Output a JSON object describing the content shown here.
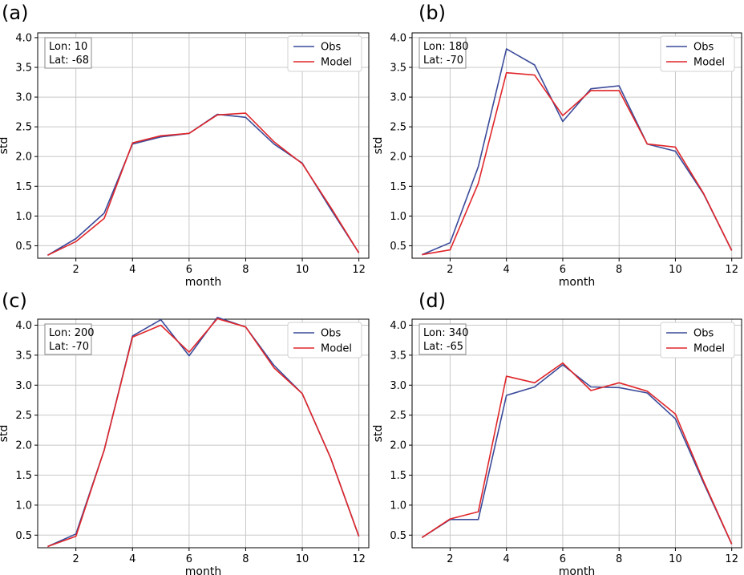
{
  "chart_data": [
    {
      "panel_label": "(a)",
      "type": "line",
      "xlabel": "month",
      "ylabel": "std",
      "xticks": [
        2,
        4,
        6,
        8,
        10,
        12
      ],
      "yticks": [
        "0.5",
        "1.0",
        "1.5",
        "2.0",
        "2.5",
        "3.0",
        "3.5",
        "4.0"
      ],
      "xlim": [
        0.65,
        12.35
      ],
      "ylim": [
        0.29,
        4.08
      ],
      "grid": true,
      "legend_position": "top-right",
      "annotation": [
        "Lon: 10",
        "Lat: -68"
      ],
      "x": [
        1,
        2,
        3,
        4,
        5,
        6,
        7,
        8,
        9,
        10,
        11,
        12
      ],
      "series": [
        {
          "name": "Obs",
          "color": "#3a4a9a",
          "values": [
            0.34,
            0.62,
            1.05,
            2.21,
            2.33,
            2.39,
            2.71,
            2.66,
            2.21,
            1.89,
            1.12,
            0.38
          ]
        },
        {
          "name": "Model",
          "color": "#e0262a",
          "values": [
            0.34,
            0.57,
            0.96,
            2.23,
            2.35,
            2.39,
            2.7,
            2.73,
            2.25,
            1.88,
            1.15,
            0.38
          ]
        }
      ]
    },
    {
      "panel_label": "(b)",
      "type": "line",
      "xlabel": "month",
      "ylabel": "std",
      "xticks": [
        2,
        4,
        6,
        8,
        10,
        12
      ],
      "yticks": [
        "0.5",
        "1.0",
        "1.5",
        "2.0",
        "2.5",
        "3.0",
        "3.5",
        "4.0"
      ],
      "xlim": [
        0.65,
        12.35
      ],
      "ylim": [
        0.29,
        4.08
      ],
      "grid": true,
      "legend_position": "top-right",
      "annotation": [
        "Lon: 180",
        "Lat: -70"
      ],
      "x": [
        1,
        2,
        3,
        4,
        5,
        6,
        7,
        8,
        9,
        10,
        11,
        12
      ],
      "series": [
        {
          "name": "Obs",
          "color": "#3a4a9a",
          "values": [
            0.35,
            0.55,
            1.83,
            3.81,
            3.54,
            2.59,
            3.14,
            3.19,
            2.21,
            2.09,
            1.37,
            0.42
          ]
        },
        {
          "name": "Model",
          "color": "#e0262a",
          "values": [
            0.35,
            0.43,
            1.55,
            3.41,
            3.37,
            2.69,
            3.11,
            3.11,
            2.21,
            2.16,
            1.38,
            0.42
          ]
        }
      ]
    },
    {
      "panel_label": "(c)",
      "type": "line",
      "xlabel": "month",
      "ylabel": "std",
      "xticks": [
        2,
        4,
        6,
        8,
        10,
        12
      ],
      "yticks": [
        "0.5",
        "1.0",
        "1.5",
        "2.0",
        "2.5",
        "3.0",
        "3.5",
        "4.0"
      ],
      "xlim": [
        0.65,
        12.35
      ],
      "ylim": [
        0.29,
        4.1
      ],
      "grid": true,
      "legend_position": "top-right",
      "annotation": [
        "Lon: 200",
        "Lat: -70"
      ],
      "x": [
        1,
        2,
        3,
        4,
        5,
        6,
        7,
        8,
        9,
        10,
        11,
        12
      ],
      "series": [
        {
          "name": "Obs",
          "color": "#3a4a9a",
          "values": [
            0.31,
            0.52,
            1.92,
            3.82,
            4.09,
            3.49,
            4.13,
            3.97,
            3.33,
            2.86,
            1.79,
            0.48
          ]
        },
        {
          "name": "Model",
          "color": "#e0262a",
          "values": [
            0.31,
            0.48,
            1.92,
            3.8,
            4.0,
            3.55,
            4.11,
            3.97,
            3.29,
            2.86,
            1.79,
            0.48
          ]
        }
      ]
    },
    {
      "panel_label": "(d)",
      "type": "line",
      "xlabel": "month",
      "ylabel": "std",
      "xticks": [
        2,
        4,
        6,
        8,
        10,
        12
      ],
      "yticks": [
        "0.5",
        "1.0",
        "1.5",
        "2.0",
        "2.5",
        "3.0",
        "3.5",
        "4.0"
      ],
      "xlim": [
        0.65,
        12.35
      ],
      "ylim": [
        0.29,
        4.1
      ],
      "grid": true,
      "legend_position": "top-right",
      "annotation": [
        "Lon: 340",
        "Lat: -65"
      ],
      "x": [
        1,
        2,
        3,
        4,
        5,
        6,
        7,
        8,
        9,
        10,
        11,
        12
      ],
      "series": [
        {
          "name": "Obs",
          "color": "#3a4a9a",
          "values": [
            0.46,
            0.76,
            0.76,
            2.83,
            2.97,
            3.34,
            2.97,
            2.96,
            2.87,
            2.44,
            1.37,
            0.35
          ]
        },
        {
          "name": "Model",
          "color": "#e0262a",
          "values": [
            0.46,
            0.77,
            0.89,
            3.15,
            3.04,
            3.37,
            2.91,
            3.04,
            2.9,
            2.52,
            1.4,
            0.35
          ]
        }
      ]
    }
  ]
}
